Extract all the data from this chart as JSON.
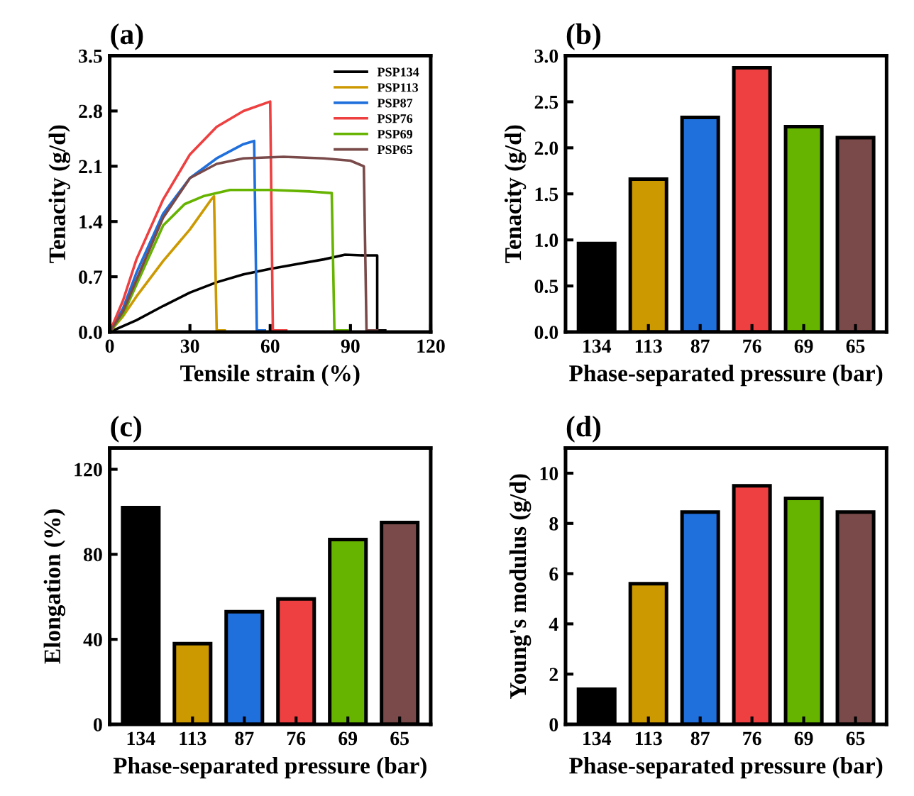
{
  "chart_data": [
    {
      "type": "line",
      "title": "(a)",
      "xlabel": "Tensile strain (%)",
      "ylabel": "Tenacity (g/d)",
      "xlim": [
        0,
        120
      ],
      "xticks": [
        0,
        30,
        60,
        90,
        120
      ],
      "ylim": [
        0,
        3.5
      ],
      "yticks": [
        {
          "value": 0,
          "label": "0.0"
        },
        0.7,
        1.4,
        2.1,
        2.8,
        3.5
      ],
      "legend": "top right",
      "series": [
        {
          "name": "PSP134",
          "color": "#000000",
          "x": [
            0,
            10,
            20,
            30,
            40,
            50,
            60,
            70,
            80,
            88,
            95,
            100,
            100,
            103
          ],
          "values": [
            0,
            0.15,
            0.33,
            0.5,
            0.63,
            0.73,
            0.8,
            0.86,
            0.92,
            0.98,
            0.97,
            0.97,
            0.02,
            0.02
          ]
        },
        {
          "name": "PSP113",
          "color": "#cc9900",
          "x": [
            0,
            5,
            10,
            20,
            30,
            38,
            39,
            40,
            43
          ],
          "values": [
            0,
            0.2,
            0.45,
            0.9,
            1.3,
            1.68,
            1.72,
            0.02,
            0.02
          ]
        },
        {
          "name": "PSP87",
          "color": "#1f6fdc",
          "x": [
            0,
            5,
            10,
            20,
            30,
            40,
            50,
            54,
            55,
            58
          ],
          "values": [
            0,
            0.3,
            0.75,
            1.5,
            1.95,
            2.2,
            2.38,
            2.42,
            0.02,
            0.02
          ]
        },
        {
          "name": "PSP76",
          "color": "#ee4040",
          "x": [
            0,
            5,
            10,
            20,
            30,
            40,
            50,
            60,
            61,
            66
          ],
          "values": [
            0,
            0.4,
            0.92,
            1.68,
            2.25,
            2.6,
            2.8,
            2.92,
            0.02,
            0.02
          ]
        },
        {
          "name": "PSP69",
          "color": "#66b300",
          "x": [
            0,
            5,
            10,
            20,
            28,
            35,
            45,
            60,
            75,
            83,
            84,
            89
          ],
          "values": [
            0,
            0.22,
            0.6,
            1.35,
            1.62,
            1.72,
            1.8,
            1.8,
            1.78,
            1.76,
            0.02,
            0.02
          ]
        },
        {
          "name": "PSP65",
          "color": "#7a4a4a",
          "x": [
            0,
            5,
            10,
            20,
            30,
            40,
            50,
            65,
            80,
            90,
            95,
            96,
            100
          ],
          "values": [
            0,
            0.26,
            0.66,
            1.45,
            1.95,
            2.13,
            2.2,
            2.22,
            2.2,
            2.17,
            2.1,
            0.02,
            0.02
          ]
        }
      ]
    },
    {
      "type": "bar",
      "title": "(b)",
      "xlabel": "Phase-separated pressure (bar)",
      "ylabel": "Tenacity (g/d)",
      "categories": [
        "134",
        "113",
        "87",
        "76",
        "69",
        "65"
      ],
      "values": [
        0.96,
        1.66,
        2.33,
        2.87,
        2.23,
        2.11
      ],
      "colors": [
        "#000000",
        "#cc9900",
        "#1f6fdc",
        "#ee4040",
        "#66b300",
        "#7a4a4a"
      ],
      "ylim": [
        0,
        3.0
      ],
      "yticks": [
        {
          "value": 0,
          "label": "0.0"
        },
        0.5,
        {
          "value": 1,
          "label": "1.0"
        },
        1.5,
        {
          "value": 2,
          "label": "2.0"
        },
        2.5,
        {
          "value": 3,
          "label": "3.0"
        }
      ]
    },
    {
      "type": "bar",
      "title": "(c)",
      "xlabel": "Phase-separated pressure (bar)",
      "ylabel": "Elongation (%)",
      "categories": [
        "134",
        "113",
        "87",
        "76",
        "69",
        "65"
      ],
      "values": [
        102,
        38,
        53,
        59,
        87,
        95
      ],
      "colors": [
        "#000000",
        "#cc9900",
        "#1f6fdc",
        "#ee4040",
        "#66b300",
        "#7a4a4a"
      ],
      "ylim": [
        0,
        130
      ],
      "yticks": [
        0,
        40,
        80,
        120
      ]
    },
    {
      "type": "bar",
      "title": "(d)",
      "xlabel": "Phase-separated pressure (bar)",
      "ylabel": "Young's modulus (g/d)",
      "categories": [
        "134",
        "113",
        "87",
        "76",
        "69",
        "65"
      ],
      "values": [
        1.4,
        5.6,
        8.45,
        9.5,
        9.0,
        8.45
      ],
      "colors": [
        "#000000",
        "#cc9900",
        "#1f6fdc",
        "#ee4040",
        "#66b300",
        "#7a4a4a"
      ],
      "ylim": [
        0,
        11
      ],
      "yticks": [
        0,
        2,
        4,
        6,
        8,
        10
      ]
    }
  ]
}
